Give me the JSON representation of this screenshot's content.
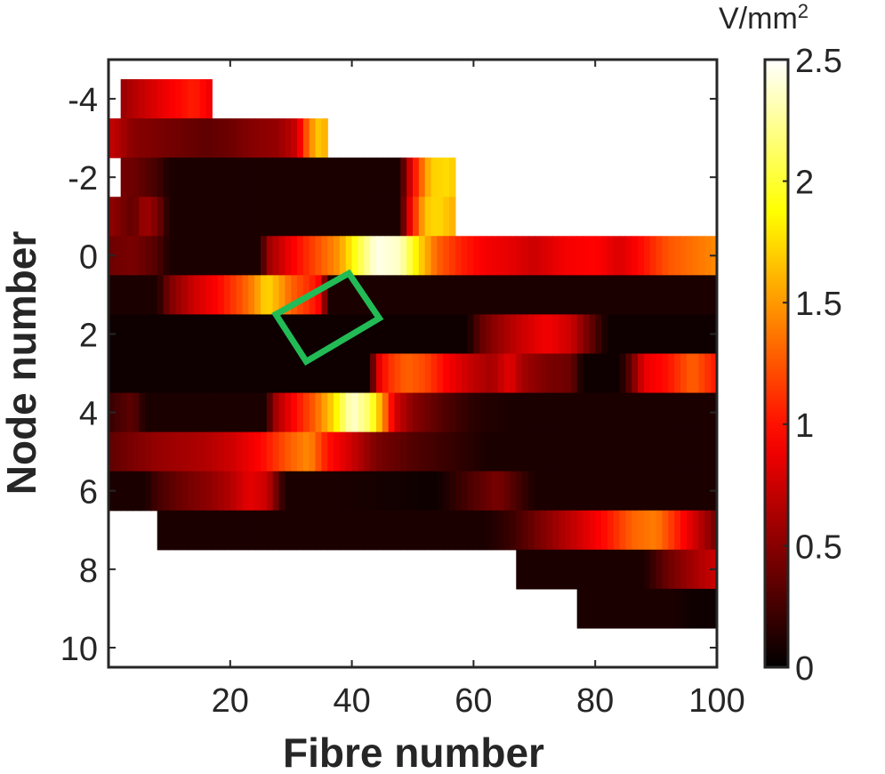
{
  "chart_data": {
    "type": "heatmap",
    "xlabel": "Fibre number",
    "ylabel": "Node number",
    "colorbar_label": "V/mm",
    "colorbar_label_sup": "2",
    "colormap": "hot",
    "xlim": [
      0,
      100
    ],
    "ylim": [
      -5,
      10.5
    ],
    "y_reversed": true,
    "x_ticks": [
      "20",
      "40",
      "60",
      "80",
      "100"
    ],
    "y_ticks": [
      "-4",
      "-2",
      "0",
      "2",
      "4",
      "6",
      "8",
      "10"
    ],
    "colorbar_ticks": [
      "0",
      "0.5",
      "1",
      "1.5",
      "2",
      "2.5"
    ],
    "clim": [
      0,
      2.5
    ],
    "rows": [
      {
        "node": -4,
        "stops": [
          [
            2,
            0.55
          ],
          [
            6,
            0.75
          ],
          [
            10,
            0.9
          ],
          [
            14,
            1.05
          ],
          [
            16.5,
            0.9
          ]
        ]
      },
      {
        "node": -3,
        "stops": [
          [
            0,
            0.75
          ],
          [
            4,
            0.5
          ],
          [
            8,
            0.45
          ],
          [
            12,
            0.4
          ],
          [
            16,
            0.35
          ],
          [
            20,
            0.4
          ],
          [
            24,
            0.5
          ],
          [
            28,
            0.55
          ],
          [
            31,
            0.75
          ],
          [
            33,
            1.4
          ],
          [
            35,
            1.75
          ],
          [
            35.5,
            1.6
          ]
        ]
      },
      {
        "node": -2,
        "stops": [
          [
            0,
            0.45
          ],
          [
            4,
            0.4
          ],
          [
            8,
            0.25
          ],
          [
            10,
            0.1
          ],
          [
            48,
            0.1
          ],
          [
            49,
            0.6
          ],
          [
            51,
            1.2
          ],
          [
            53,
            1.7
          ],
          [
            56,
            1.75
          ],
          [
            56.5,
            1.7
          ]
        ]
      },
      {
        "node": 0,
        "stops": [
          [
            0,
            0.4
          ],
          [
            4,
            0.45
          ],
          [
            8,
            0.3
          ],
          [
            10,
            0.1
          ],
          [
            25,
            0.1
          ],
          [
            26,
            0.55
          ],
          [
            30,
            0.9
          ],
          [
            34,
            1.2
          ],
          [
            38,
            1.5
          ],
          [
            41,
            2.0
          ],
          [
            44,
            2.45
          ],
          [
            48,
            2.35
          ],
          [
            51,
            1.75
          ],
          [
            54,
            1.3
          ],
          [
            58,
            1.05
          ],
          [
            62,
            0.9
          ],
          [
            66,
            0.85
          ],
          [
            70,
            0.75
          ],
          [
            75,
            0.9
          ],
          [
            80,
            0.95
          ],
          [
            84,
            0.8
          ],
          [
            88,
            1.0
          ],
          [
            92,
            1.25
          ],
          [
            96,
            1.35
          ],
          [
            100,
            1.45
          ]
        ]
      },
      {
        "node": 1,
        "stops": [
          [
            0,
            0.1
          ],
          [
            8,
            0.1
          ],
          [
            10,
            0.45
          ],
          [
            14,
            0.75
          ],
          [
            18,
            0.95
          ],
          [
            22,
            1.25
          ],
          [
            24,
            1.45
          ],
          [
            26,
            1.75
          ],
          [
            28,
            1.55
          ],
          [
            30,
            1.3
          ],
          [
            33,
            1.1
          ],
          [
            35,
            0.9
          ],
          [
            36,
            0.1
          ],
          [
            100,
            0.1
          ]
        ]
      },
      {
        "node": 2,
        "stops": [
          [
            0,
            0.05
          ],
          [
            59,
            0.05
          ],
          [
            61,
            0.35
          ],
          [
            64,
            0.55
          ],
          [
            68,
            0.75
          ],
          [
            72,
            0.9
          ],
          [
            76,
            0.75
          ],
          [
            79,
            0.4
          ],
          [
            82,
            0.05
          ],
          [
            100,
            0.05
          ]
        ]
      },
      {
        "node": 3,
        "stops": [
          [
            0,
            0.05
          ],
          [
            43,
            0.05
          ],
          [
            44,
            0.75
          ],
          [
            46,
            1.1
          ],
          [
            49,
            1.3
          ],
          [
            52,
            1.2
          ],
          [
            56,
            0.9
          ],
          [
            60,
            0.7
          ],
          [
            63,
            0.6
          ],
          [
            66,
            0.85
          ],
          [
            68,
            0.6
          ],
          [
            72,
            0.45
          ],
          [
            76,
            0.4
          ],
          [
            78,
            0.05
          ],
          [
            84,
            0.05
          ],
          [
            86,
            0.4
          ],
          [
            88,
            0.85
          ],
          [
            92,
            1.0
          ],
          [
            96,
            1.3
          ],
          [
            100,
            1.0
          ]
        ]
      },
      {
        "node": 4,
        "stops": [
          [
            0,
            0.2
          ],
          [
            4,
            0.35
          ],
          [
            6,
            0.1
          ],
          [
            26,
            0.1
          ],
          [
            27,
            0.55
          ],
          [
            30,
            0.9
          ],
          [
            34,
            1.3
          ],
          [
            37,
            1.75
          ],
          [
            40,
            2.4
          ],
          [
            43,
            2.1
          ],
          [
            45,
            1.5
          ],
          [
            47,
            0.8
          ],
          [
            50,
            0.5
          ],
          [
            55,
            0.3
          ],
          [
            60,
            0.15
          ],
          [
            66,
            0.1
          ],
          [
            100,
            0.1
          ]
        ]
      },
      {
        "node": 5,
        "stops": [
          [
            0,
            0.35
          ],
          [
            4,
            0.45
          ],
          [
            8,
            0.55
          ],
          [
            12,
            0.6
          ],
          [
            16,
            0.65
          ],
          [
            20,
            0.75
          ],
          [
            25,
            0.95
          ],
          [
            30,
            1.3
          ],
          [
            33,
            1.45
          ],
          [
            36,
            1.0
          ],
          [
            40,
            0.75
          ],
          [
            44,
            0.45
          ],
          [
            50,
            0.3
          ],
          [
            56,
            0.2
          ],
          [
            62,
            0.1
          ],
          [
            100,
            0.1
          ]
        ]
      },
      {
        "node": 6,
        "stops": [
          [
            0,
            0.1
          ],
          [
            6,
            0.1
          ],
          [
            8,
            0.25
          ],
          [
            12,
            0.4
          ],
          [
            16,
            0.5
          ],
          [
            20,
            0.65
          ],
          [
            23,
            0.85
          ],
          [
            26,
            0.75
          ],
          [
            29,
            0.1
          ],
          [
            36,
            0.1
          ],
          [
            54,
            0.05
          ],
          [
            60,
            0.3
          ],
          [
            64,
            0.45
          ],
          [
            70,
            0.1
          ],
          [
            100,
            0.1
          ]
        ]
      },
      {
        "node": 7,
        "stops": [
          [
            7,
            0.1
          ],
          [
            27,
            0.1
          ],
          [
            62,
            0.1
          ],
          [
            66,
            0.2
          ],
          [
            70,
            0.4
          ],
          [
            74,
            0.6
          ],
          [
            78,
            0.8
          ],
          [
            82,
            1.0
          ],
          [
            86,
            1.3
          ],
          [
            90,
            1.4
          ],
          [
            94,
            1.0
          ],
          [
            97,
            0.7
          ],
          [
            99.5,
            0.45
          ]
        ]
      },
      {
        "node": 8,
        "stops": [
          [
            67,
            0.1
          ],
          [
            88,
            0.1
          ],
          [
            92,
            0.4
          ],
          [
            96,
            0.6
          ],
          [
            100,
            0.75
          ]
        ]
      },
      {
        "node": 9,
        "stops": [
          [
            77,
            0.1
          ],
          [
            93,
            0.1
          ],
          [
            96,
            0.05
          ],
          [
            100,
            0.05
          ]
        ]
      }
    ],
    "row_extents": [
      {
        "node": -4,
        "from": 2,
        "to": 17
      },
      {
        "node": -3,
        "from": 0,
        "to": 36
      },
      {
        "node": -2,
        "from": 2,
        "to": 57
      },
      {
        "node": -1,
        "from": 0,
        "to": 57
      },
      {
        "node": 0,
        "from": 0,
        "to": 100
      },
      {
        "node": 1,
        "from": 0,
        "to": 100
      },
      {
        "node": 2,
        "from": 0,
        "to": 100
      },
      {
        "node": 3,
        "from": 0,
        "to": 100
      },
      {
        "node": 4,
        "from": 0,
        "to": 100
      },
      {
        "node": 5,
        "from": 0,
        "to": 100
      },
      {
        "node": 6,
        "from": 0,
        "to": 100
      },
      {
        "node": 7,
        "from": 8,
        "to": 100
      },
      {
        "node": 8,
        "from": 67,
        "to": 100
      },
      {
        "node": 9,
        "from": 77,
        "to": 100
      }
    ],
    "annotation": {
      "shape": "rotated-rectangle",
      "color": "#22bb55",
      "corners": [
        [
          39.5,
          0.45
        ],
        [
          44.5,
          1.6
        ],
        [
          32.5,
          2.7
        ],
        [
          27.5,
          1.5
        ]
      ]
    },
    "grid": false
  }
}
